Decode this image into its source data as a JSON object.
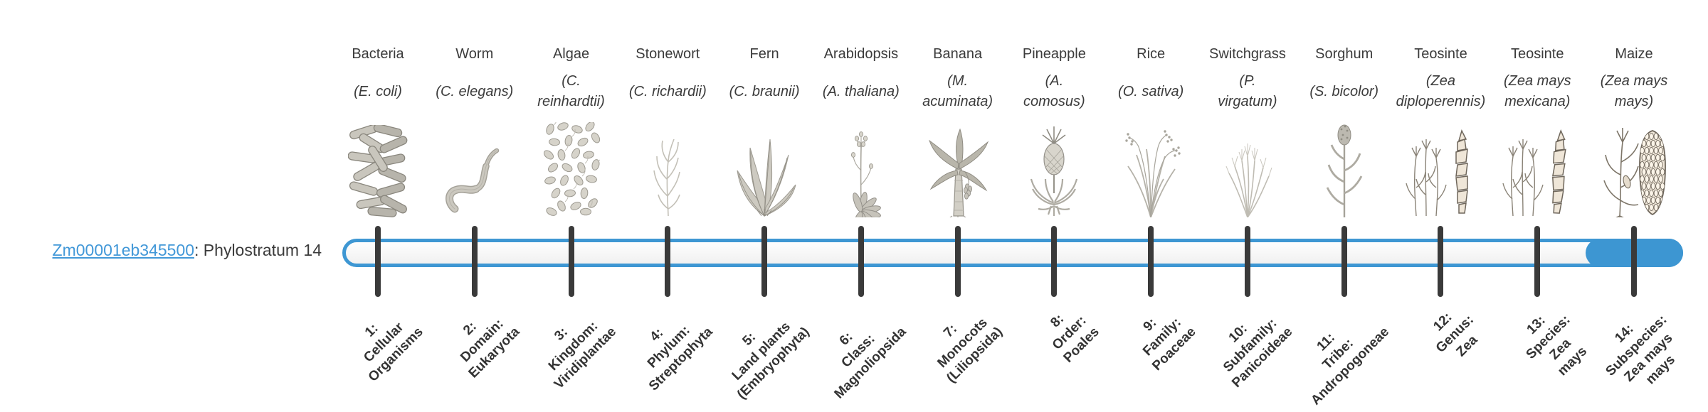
{
  "gene_label": {
    "id": "Zm00001eb345500",
    "suffix": ": Phylostratum 14"
  },
  "colors": {
    "accent_blue": "#3d96d2",
    "bar_border_blue": "#3e97d3",
    "tick_dark": "#3a3a3a",
    "text_dark": "#3b3b3b",
    "link_blue": "#4298d8"
  },
  "chart_data": {
    "type": "timeline",
    "title": "Zm00001eb345500: Phylostratum 14",
    "gene": "Zm00001eb345500",
    "gene_phylostratum": 14,
    "highlighted_stratum": 14,
    "num_strata": 14,
    "legend_position": "none",
    "strata": [
      {
        "num": 1,
        "organism": "Bacteria",
        "species": "(E. coli)",
        "stratum_label": "1:\nCellular\nOrganisms",
        "icon": "bacteria-icon"
      },
      {
        "num": 2,
        "organism": "Worm",
        "species": "(C. elegans)",
        "stratum_label": "2:\nDomain:\nEukaryota",
        "icon": "worm-icon"
      },
      {
        "num": 3,
        "organism": "Algae",
        "species": "(C.\nreinhardtii)",
        "stratum_label": "3:\nKingdom:\nViridiplantae",
        "icon": "algae-icon"
      },
      {
        "num": 4,
        "organism": "Stonewort",
        "species": "(C. richardii)",
        "stratum_label": "4:\nPhylum:\nStreptophyta",
        "icon": "stonewort-icon"
      },
      {
        "num": 5,
        "organism": "Fern",
        "species": "(C. braunii)",
        "stratum_label": "5:\nLand plants\n(Embryophyta)",
        "icon": "fern-icon"
      },
      {
        "num": 6,
        "organism": "Arabidopsis",
        "species": "(A. thaliana)",
        "stratum_label": "6:\nClass:\nMagnoliopsida",
        "icon": "arabidopsis-icon"
      },
      {
        "num": 7,
        "organism": "Banana",
        "species": "(M.\nacuminata)",
        "stratum_label": "7:\nMonocots\n(Liliopsida)",
        "icon": "banana-icon"
      },
      {
        "num": 8,
        "organism": "Pineapple",
        "species": "(A.\ncomosus)",
        "stratum_label": "8:\nOrder:\nPoales",
        "icon": "pineapple-icon"
      },
      {
        "num": 9,
        "organism": "Rice",
        "species": "(O. sativa)",
        "stratum_label": "9:\nFamily:\nPoaceae",
        "icon": "rice-icon"
      },
      {
        "num": 10,
        "organism": "Switchgrass",
        "species": "(P.\nvirgatum)",
        "stratum_label": "10:\nSubfamily:\nPanicoideae",
        "icon": "switchgrass-icon"
      },
      {
        "num": 11,
        "organism": "Sorghum",
        "species": "(S. bicolor)",
        "stratum_label": "11:\nTribe:\nAndropogoneae",
        "icon": "sorghum-icon"
      },
      {
        "num": 12,
        "organism": "Teosinte",
        "species": "(Zea\ndiploperennis)",
        "stratum_label": "12:\nGenus:\nZea",
        "icon": "teosinte-diploperennis-icon"
      },
      {
        "num": 13,
        "organism": "Teosinte",
        "species": "(Zea mays\nmexicana)",
        "stratum_label": "13:\nSpecies:\nZea\nmays",
        "icon": "teosinte-mexicana-icon"
      },
      {
        "num": 14,
        "organism": "Maize",
        "species": "(Zea mays\nmays)",
        "stratum_label": "14:\nSubspecies:\nZea mays\nmays",
        "icon": "maize-icon"
      }
    ]
  }
}
